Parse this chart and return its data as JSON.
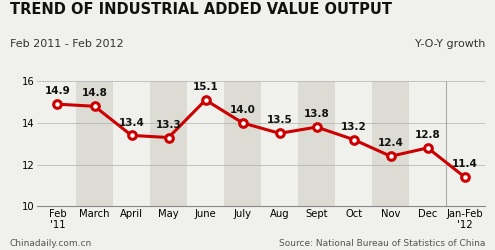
{
  "title": "TREND OF INDUSTRIAL ADDED VALUE OUTPUT",
  "subtitle_left": "Feb 2011 - Feb 2012",
  "subtitle_right": "Y-O-Y growth",
  "categories": [
    "Feb\n'11",
    "March",
    "April",
    "May",
    "June",
    "July",
    "Aug",
    "Sept",
    "Oct",
    "Nov",
    "Dec",
    "Jan-Feb\n'12"
  ],
  "values": [
    14.9,
    14.8,
    13.4,
    13.3,
    15.1,
    14.0,
    13.5,
    13.8,
    13.2,
    12.4,
    12.8,
    11.4
  ],
  "ylim": [
    10,
    16
  ],
  "yticks": [
    10,
    12,
    14,
    16
  ],
  "line_color": "#cc0000",
  "marker_color": "#cc0000",
  "bg_color": "#f0f0ec",
  "plot_bg_color": "#f0f0ec",
  "stripe_color": "#dcdcd4",
  "footer_left": "Chinadaily.com.cn",
  "footer_right": "Source: National Bureau of Statistics of China",
  "title_color": "#111111",
  "value_fontsize": 7.5,
  "axis_fontsize": 7.2,
  "title_fontsize": 10.5,
  "subtitle_fontsize": 8.0,
  "footer_fontsize": 6.5,
  "stripe_columns": [
    1,
    3,
    5,
    7,
    9
  ],
  "vline_x": 10.5
}
